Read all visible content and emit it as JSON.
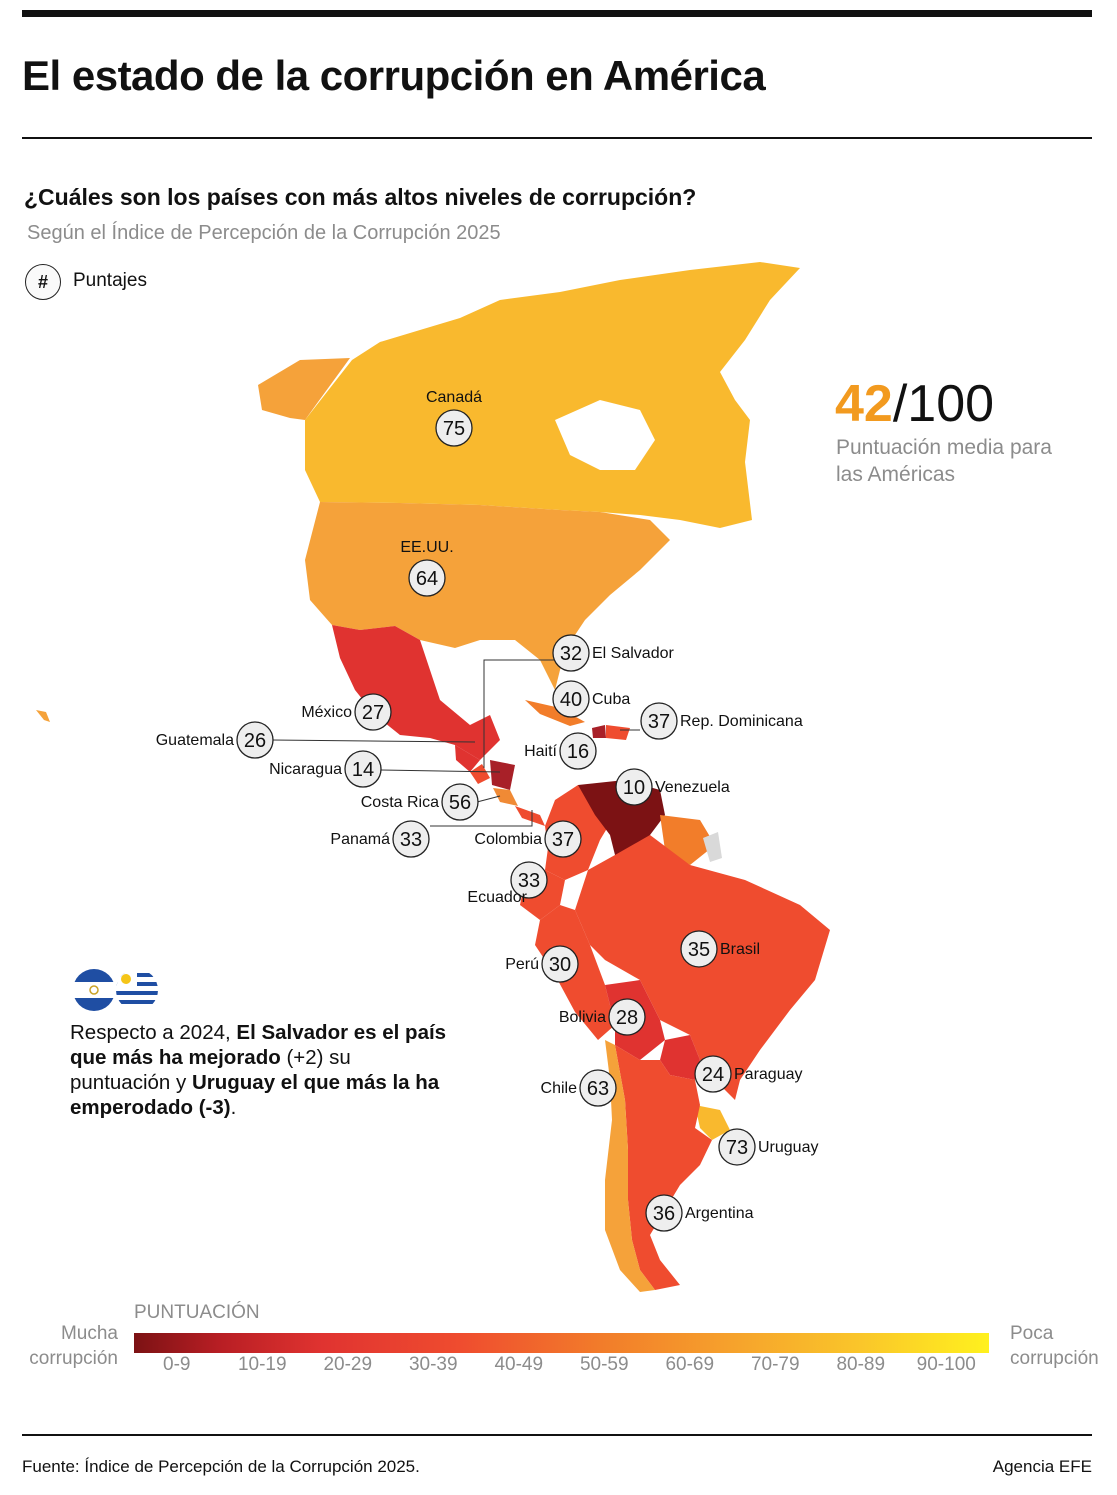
{
  "title": "El estado de la corrupción en América",
  "subtitle": "¿Cuáles son los países con más altos niveles de corrupción?",
  "subsubtitle": "Según el Índice de Percepción de la Corrupción 2025",
  "legend": {
    "symbol": "#",
    "label": "Puntajes"
  },
  "average": {
    "value": "42",
    "suffix": "/100",
    "caption": "Puntuación media para las Américas"
  },
  "colors": {
    "c0_9": "#7c1214",
    "c10_19": "#a82028",
    "c20_29": "#e03330",
    "c30_39": "#ef4c2f",
    "c40_49": "#f27d2a",
    "c50_59": "#f08a35",
    "c60_69": "#f5a23a",
    "c70_79": "#f9b92e",
    "nodata": "#d9d9d9"
  },
  "countries": [
    {
      "name": "Canadá",
      "score": "75"
    },
    {
      "name": "EE.UU.",
      "score": "64"
    },
    {
      "name": "México",
      "score": "27"
    },
    {
      "name": "Guatemala",
      "score": "26"
    },
    {
      "name": "Nicaragua",
      "score": "14"
    },
    {
      "name": "Costa Rica",
      "score": "56"
    },
    {
      "name": "Panamá",
      "score": "33"
    },
    {
      "name": "El Salvador",
      "score": "32"
    },
    {
      "name": "Cuba",
      "score": "40"
    },
    {
      "name": "Rep. Dominicana",
      "score": "37"
    },
    {
      "name": "Haití",
      "score": "16"
    },
    {
      "name": "Venezuela",
      "score": "10"
    },
    {
      "name": "Colombia",
      "score": "37"
    },
    {
      "name": "Ecuador",
      "score": "33"
    },
    {
      "name": "Perú",
      "score": "30"
    },
    {
      "name": "Brasil",
      "score": "35"
    },
    {
      "name": "Bolivia",
      "score": "28"
    },
    {
      "name": "Chile",
      "score": "63"
    },
    {
      "name": "Paraguay",
      "score": "24"
    },
    {
      "name": "Uruguay",
      "score": "73"
    },
    {
      "name": "Argentina",
      "score": "36"
    }
  ],
  "note": {
    "p1": "Respecto a 2024, ",
    "b1": "El Salvador es el país que más ha mejorado",
    "p2": " (+2) su puntuación  y ",
    "b2": "Uruguay el que más la ha emperodado (-3)",
    "p3": "."
  },
  "scale": {
    "title": "PUNTUACIÓN",
    "left": "Mucha corrupción",
    "right": "Poca corrupción",
    "ranges": [
      "0-9",
      "10-19",
      "20-29",
      "30-39",
      "40-49",
      "50-59",
      "60-69",
      "70-79",
      "80-89",
      "90-100"
    ]
  },
  "source": "Fuente: Índice de Percepción de la Corrupción 2025.",
  "agency": "Agencia EFE"
}
